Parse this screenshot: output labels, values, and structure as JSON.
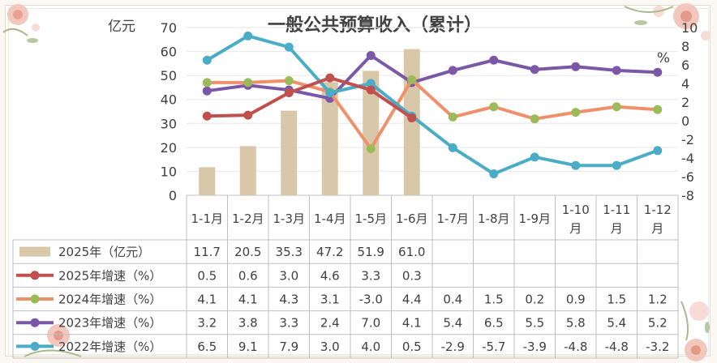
{
  "chart_data": {
    "type": "bar+line",
    "title": "一般公共预算收入（累计）",
    "y_left": {
      "unit": "亿元",
      "ylim": [
        0,
        70
      ],
      "ticks": [
        0,
        10,
        20,
        30,
        40,
        50,
        60,
        70
      ]
    },
    "y_right": {
      "unit": "%",
      "ylim": [
        -8,
        10
      ],
      "ticks": [
        -8,
        -6,
        -4,
        -2,
        0,
        2,
        4,
        6,
        8,
        10
      ]
    },
    "categories": [
      [
        "1-1月"
      ],
      [
        "1-2月"
      ],
      [
        "1-3月"
      ],
      [
        "1-4月"
      ],
      [
        "1-5月"
      ],
      [
        "1-6月"
      ],
      [
        "1-7月"
      ],
      [
        "1-8月"
      ],
      [
        "1-9月"
      ],
      [
        "1-10",
        "月"
      ],
      [
        "1-11",
        "月"
      ],
      [
        "1-12",
        "月"
      ]
    ],
    "series": [
      {
        "name": "2025年（亿元）",
        "kind": "bar",
        "axis": "left",
        "color": "#d9c7aa",
        "values": [
          11.7,
          20.5,
          35.3,
          47.2,
          51.9,
          61.0,
          null,
          null,
          null,
          null,
          null,
          null
        ],
        "labels": [
          "11.7",
          "20.5",
          "35.3",
          "47.2",
          "51.9",
          "61.0",
          "",
          "",
          "",
          "",
          "",
          ""
        ]
      },
      {
        "name": "2025年增速（%）",
        "kind": "line",
        "axis": "right",
        "color": "#c0504d",
        "values": [
          0.5,
          0.6,
          3.0,
          4.6,
          3.3,
          0.3,
          null,
          null,
          null,
          null,
          null,
          null
        ],
        "labels": [
          "0.5",
          "0.6",
          "3.0",
          "4.6",
          "3.3",
          "0.3",
          "",
          "",
          "",
          "",
          "",
          ""
        ]
      },
      {
        "name": "2024年增速（%）",
        "kind": "line",
        "axis": "right",
        "color": "#f0906a",
        "marker": "#9bbb59",
        "values": [
          4.1,
          4.1,
          4.3,
          3.1,
          -3.0,
          4.4,
          0.4,
          1.5,
          0.2,
          0.9,
          1.5,
          1.2
        ],
        "labels": [
          "4.1",
          "4.1",
          "4.3",
          "3.1",
          "-3.0",
          "4.4",
          "0.4",
          "1.5",
          "0.2",
          "0.9",
          "1.5",
          "1.2"
        ]
      },
      {
        "name": "2023年增速（%）",
        "kind": "line",
        "axis": "right",
        "color": "#7b57a8",
        "values": [
          3.2,
          3.8,
          3.3,
          2.4,
          7.0,
          4.1,
          5.4,
          6.5,
          5.5,
          5.8,
          5.4,
          5.2
        ],
        "labels": [
          "3.2",
          "3.8",
          "3.3",
          "2.4",
          "7.0",
          "4.1",
          "5.4",
          "6.5",
          "5.5",
          "5.8",
          "5.4",
          "5.2"
        ]
      },
      {
        "name": "2022年增速（%）",
        "kind": "line",
        "axis": "right",
        "color": "#4bacc6",
        "values": [
          6.5,
          9.1,
          7.9,
          3.0,
          4.0,
          0.5,
          -2.9,
          -5.7,
          -3.9,
          -4.8,
          -4.8,
          -3.2
        ],
        "labels": [
          "6.5",
          "9.1",
          "7.9",
          "3.0",
          "4.0",
          "0.5",
          "-2.9",
          "-5.7",
          "-3.9",
          "-4.8",
          "-4.8",
          "-3.2"
        ]
      }
    ],
    "grid": true,
    "legend": "data-table-left"
  }
}
